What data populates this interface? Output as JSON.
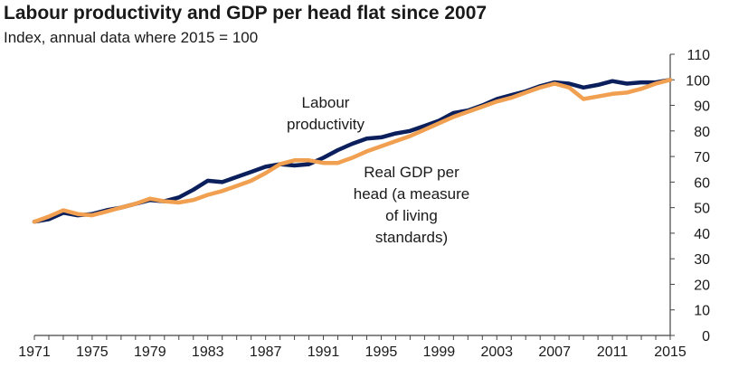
{
  "chart_data": {
    "type": "line",
    "title": "Labour productivity and GDP per head flat since 2007",
    "subtitle": "Index, annual data where 2015 = 100",
    "x": [
      1971,
      1972,
      1973,
      1974,
      1975,
      1976,
      1977,
      1978,
      1979,
      1980,
      1981,
      1982,
      1983,
      1984,
      1985,
      1986,
      1987,
      1988,
      1989,
      1990,
      1991,
      1992,
      1993,
      1994,
      1995,
      1996,
      1997,
      1998,
      1999,
      2000,
      2001,
      2002,
      2003,
      2004,
      2005,
      2006,
      2007,
      2008,
      2009,
      2010,
      2011,
      2012,
      2013,
      2014,
      2015
    ],
    "xlim": [
      1971,
      2015
    ],
    "ylim": [
      0,
      110
    ],
    "x_ticks": [
      "1971",
      "1975",
      "1979",
      "1983",
      "1987",
      "1991",
      "1995",
      "1999",
      "2003",
      "2007",
      "2011",
      "2015"
    ],
    "x_tick_values": [
      1971,
      1975,
      1979,
      1983,
      1987,
      1991,
      1995,
      1999,
      2003,
      2007,
      2011,
      2015
    ],
    "y_ticks": [
      "0",
      "10",
      "20",
      "30",
      "40",
      "50",
      "60",
      "70",
      "80",
      "90",
      "100",
      "110"
    ],
    "y_tick_values": [
      0,
      10,
      20,
      30,
      40,
      50,
      60,
      70,
      80,
      90,
      100,
      110
    ],
    "y_axis_side": "right",
    "grid": false,
    "series": [
      {
        "name": "Labour productivity",
        "color": "#0a1f5c",
        "values": [
          44.5,
          45.5,
          48,
          47,
          47.5,
          49,
          50,
          51.5,
          53,
          52.5,
          54,
          57,
          60.5,
          60,
          62,
          64,
          66,
          67,
          66.5,
          67,
          69.5,
          72.5,
          75,
          77,
          77.5,
          79,
          80,
          82,
          84,
          87,
          88,
          90,
          92.5,
          94,
          95.5,
          97.5,
          99,
          98.5,
          97,
          98,
          99.5,
          98.5,
          99,
          99,
          100
        ]
      },
      {
        "name": "Real GDP per head (a measure of living standards)",
        "color": "#f0a050",
        "values": [
          44.5,
          46.5,
          49,
          47.5,
          47,
          48.5,
          50,
          51.5,
          53.5,
          52.5,
          52,
          53,
          55,
          56.5,
          58.5,
          60.5,
          63.5,
          67,
          68.5,
          68.5,
          67.5,
          67.5,
          69.5,
          72,
          74,
          76,
          78,
          80.5,
          83,
          85.5,
          87.5,
          89.5,
          91.5,
          93,
          95,
          97,
          98.5,
          97,
          92.5,
          93.5,
          94.5,
          95,
          96.5,
          98.5,
          100
        ]
      }
    ],
    "annotations": [
      {
        "lines": [
          "Labour",
          "productivity"
        ],
        "series": "Labour productivity"
      },
      {
        "lines": [
          "Real GDP per",
          "head (a measure",
          "of living",
          "standards)"
        ],
        "series": "Real GDP per head (a measure of living standards)"
      }
    ]
  }
}
